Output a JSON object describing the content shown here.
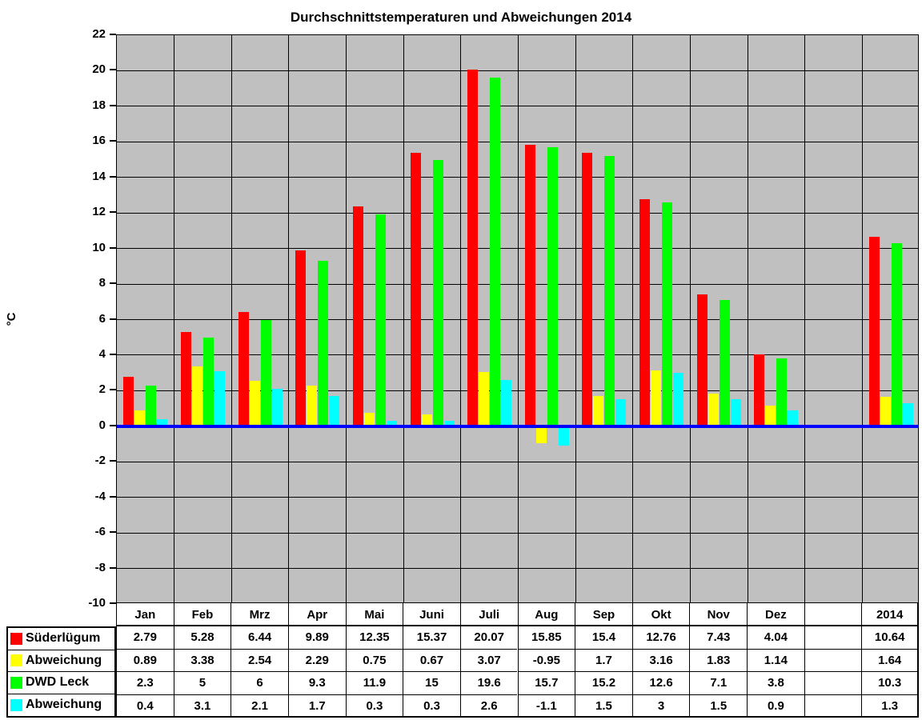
{
  "title": "Durchschnittstemperaturen und Abweichungen 2014",
  "y_axis": {
    "label": "°C",
    "min": -10,
    "max": 22,
    "step": 2
  },
  "colors": {
    "plot_background": "#c0c0c0",
    "gridline": "#000000",
    "zero_line": "#0000ff",
    "series_red": "#ff0000",
    "series_yellow": "#ffff00",
    "series_green": "#00ff00",
    "series_cyan": "#00ffff"
  },
  "chart_data": {
    "type": "bar",
    "title": "Durchschnittstemperaturen und Abweichungen 2014",
    "xlabel": "",
    "ylabel": "°C",
    "ylim": [
      -10,
      22
    ],
    "y_ticks": [
      22,
      20,
      18,
      16,
      14,
      12,
      10,
      8,
      6,
      4,
      2,
      0,
      -2,
      -4,
      -6,
      -8,
      -10
    ],
    "grid": true,
    "legend_position": "table-left",
    "categories": [
      "Jan",
      "Feb",
      "Mrz",
      "Apr",
      "Mai",
      "Juni",
      "Juli",
      "Aug",
      "Sep",
      "Okt",
      "Nov",
      "Dez",
      "",
      "2014"
    ],
    "series": [
      {
        "name": "Süderlügum",
        "color": "#ff0000",
        "values": [
          2.79,
          5.28,
          6.44,
          9.89,
          12.35,
          15.37,
          20.07,
          15.85,
          15.4,
          12.76,
          7.43,
          4.04,
          null,
          10.64
        ]
      },
      {
        "name": "Abweichung",
        "color": "#ffff00",
        "values": [
          0.89,
          3.38,
          2.54,
          2.29,
          0.75,
          0.67,
          3.07,
          -0.95,
          1.7,
          3.16,
          1.83,
          1.14,
          null,
          1.64
        ]
      },
      {
        "name": "DWD Leck",
        "color": "#00ff00",
        "values": [
          2.3,
          5,
          6,
          9.3,
          11.9,
          15,
          19.6,
          15.7,
          15.2,
          12.6,
          7.1,
          3.8,
          null,
          10.3
        ]
      },
      {
        "name": "Abweichung",
        "color": "#00ffff",
        "values": [
          0.4,
          3.1,
          2.1,
          1.7,
          0.3,
          0.3,
          2.6,
          -1.1,
          1.5,
          3,
          1.5,
          0.9,
          null,
          1.3
        ]
      }
    ]
  },
  "table": {
    "columns": [
      "Jan",
      "Feb",
      "Mrz",
      "Apr",
      "Mai",
      "Juni",
      "Juli",
      "Aug",
      "Sep",
      "Okt",
      "Nov",
      "Dez",
      "",
      "2014"
    ],
    "rows": [
      {
        "label": "Süderlügum",
        "color": "#ff0000",
        "values": [
          "2.79",
          "5.28",
          "6.44",
          "9.89",
          "12.35",
          "15.37",
          "20.07",
          "15.85",
          "15.4",
          "12.76",
          "7.43",
          "4.04",
          "",
          "10.64"
        ]
      },
      {
        "label": "Abweichung",
        "color": "#ffff00",
        "values": [
          "0.89",
          "3.38",
          "2.54",
          "2.29",
          "0.75",
          "0.67",
          "3.07",
          "-0.95",
          "1.7",
          "3.16",
          "1.83",
          "1.14",
          "",
          "1.64"
        ]
      },
      {
        "label": "DWD Leck",
        "color": "#00ff00",
        "values": [
          "2.3",
          "5",
          "6",
          "9.3",
          "11.9",
          "15",
          "19.6",
          "15.7",
          "15.2",
          "12.6",
          "7.1",
          "3.8",
          "",
          "10.3"
        ]
      },
      {
        "label": "Abweichung",
        "color": "#00ffff",
        "values": [
          "0.4",
          "3.1",
          "2.1",
          "1.7",
          "0.3",
          "0.3",
          "2.6",
          "-1.1",
          "1.5",
          "3",
          "1.5",
          "0.9",
          "",
          "1.3"
        ]
      }
    ]
  }
}
